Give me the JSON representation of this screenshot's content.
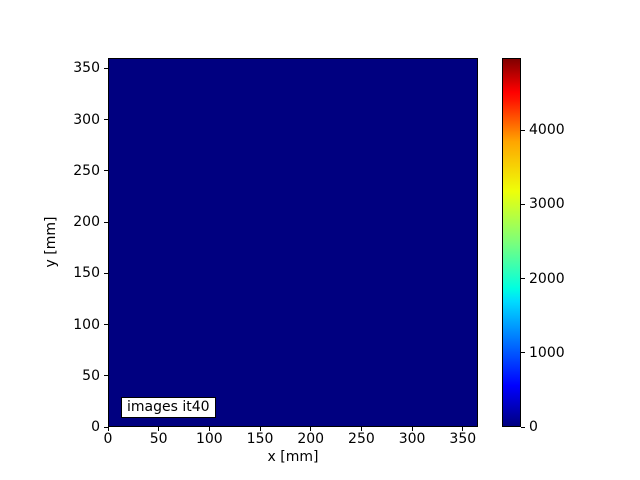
{
  "figure": {
    "background_color": "#ffffff"
  },
  "chart_data": {
    "type": "heatmap",
    "title": "",
    "xlabel": "x [mm]",
    "ylabel": "y [mm]",
    "annotation": "images it40",
    "xticks": [
      0,
      50,
      100,
      150,
      200,
      250,
      300,
      350
    ],
    "yticks": [
      0,
      50,
      100,
      150,
      200,
      250,
      300,
      350
    ],
    "xlim": [
      0,
      365
    ],
    "ylim": [
      0,
      360
    ],
    "uniform_value": 0,
    "field_color": "#000080",
    "grid": false,
    "colorbar": {
      "colormap": "jet",
      "ticks": [
        0,
        1000,
        2000,
        3000,
        4000
      ],
      "clim": [
        0,
        4970
      ],
      "gradient_stops": [
        {
          "pos": 0,
          "color": "#000080"
        },
        {
          "pos": 11,
          "color": "#0000ff"
        },
        {
          "pos": 34,
          "color": "#00dcff"
        },
        {
          "pos": 37.5,
          "color": "#00ffe1"
        },
        {
          "pos": 50,
          "color": "#7bff7b"
        },
        {
          "pos": 64,
          "color": "#eeff09"
        },
        {
          "pos": 77.5,
          "color": "#ffa500"
        },
        {
          "pos": 89,
          "color": "#ff1300"
        },
        {
          "pos": 91,
          "color": "#ff0000"
        },
        {
          "pos": 100,
          "color": "#800000"
        }
      ]
    }
  }
}
